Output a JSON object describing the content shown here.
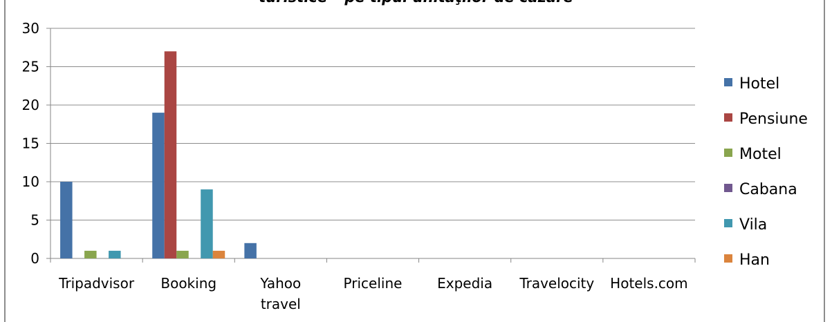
{
  "chart_data": {
    "type": "bar",
    "title": "turistice – pe tipul unităţilor de cazare",
    "categories": [
      "Tripadvisor",
      "Booking",
      "Yahoo\ntravel",
      "Priceline",
      "Expedia",
      "Travelocity",
      "Hotels.com"
    ],
    "series": [
      {
        "name": "Hotel",
        "color": "#4572a7",
        "values": [
          10,
          19,
          2,
          0,
          0,
          0,
          0
        ]
      },
      {
        "name": "Pensiune",
        "color": "#aa4643",
        "values": [
          0,
          27,
          0,
          0,
          0,
          0,
          0
        ]
      },
      {
        "name": "Motel",
        "color": "#89a54e",
        "values": [
          1,
          1,
          0,
          0,
          0,
          0,
          0
        ]
      },
      {
        "name": "Cabana",
        "color": "#71588f",
        "values": [
          0,
          0,
          0,
          0,
          0,
          0,
          0
        ]
      },
      {
        "name": "Vila",
        "color": "#4198af",
        "values": [
          1,
          9,
          0,
          0,
          0,
          0,
          0
        ]
      },
      {
        "name": "Han",
        "color": "#db843d",
        "values": [
          0,
          1,
          0,
          0,
          0,
          0,
          0
        ]
      }
    ],
    "yticks": [
      0,
      5,
      10,
      15,
      20,
      25,
      30
    ],
    "ylim": [
      0,
      30
    ],
    "xlabel": "",
    "ylabel": "",
    "grid": true,
    "legend": "right"
  }
}
